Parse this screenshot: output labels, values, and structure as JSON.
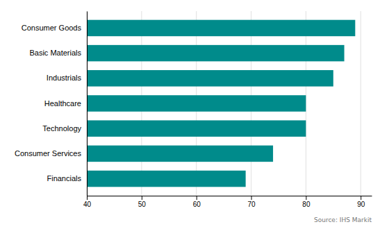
{
  "chart_data": {
    "type": "bar",
    "orientation": "horizontal",
    "categories": [
      "Consumer Goods",
      "Basic Materials",
      "Industrials",
      "Healthcare",
      "Technology",
      "Consumer Services",
      "Financials"
    ],
    "values": [
      89,
      87,
      85,
      80,
      80,
      74,
      69
    ],
    "color": "#008B8B",
    "xlim": [
      40,
      92
    ],
    "xticks": [
      40,
      50,
      60,
      70,
      80,
      90
    ],
    "grid": true,
    "annotations": [
      "Source: IHS Markit"
    ]
  }
}
